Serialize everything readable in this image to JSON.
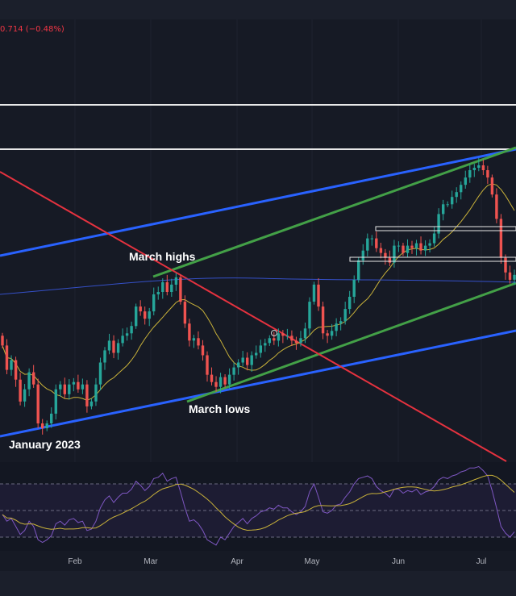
{
  "price_change": "0.714 (−0.48%)",
  "colors": {
    "background": "#161a25",
    "candle_up": "#26a69a",
    "candle_down": "#ef5350",
    "blue_channel": "#2962ff",
    "green_channel": "#43a047",
    "red_trendline": "#e5323f",
    "ma_50": "#c9b23a",
    "ma_200": "#3550c8",
    "rsi": "#7e57c2",
    "rsi_ma": "#c9b23a"
  },
  "chart_data": {
    "type": "candlestick",
    "x_ticks": [
      "Feb",
      "Mar",
      "Apr",
      "May",
      "Jun",
      "Jul"
    ],
    "annotations": [
      {
        "text": "March highs"
      },
      {
        "text": "March lows"
      },
      {
        "text": "January 2023"
      }
    ],
    "lines": [
      {
        "type": "horizontal-resistance",
        "color": "white"
      },
      {
        "type": "horizontal-resistance",
        "color": "white"
      },
      {
        "type": "rising-channel",
        "color": "blue"
      },
      {
        "type": "rising-channel",
        "color": "green"
      },
      {
        "type": "falling-trendline",
        "color": "red"
      },
      {
        "type": "horizontal-zone",
        "color": "white"
      },
      {
        "type": "horizontal-zone",
        "color": "white"
      }
    ],
    "indicators": [
      "moving-average-yellow",
      "moving-average-blue",
      "rsi",
      "rsi-moving-average"
    ],
    "candles_closes": [
      0.78,
      0.73,
      0.75,
      0.71,
      0.665,
      0.69,
      0.725,
      0.7,
      0.62,
      0.61,
      0.62,
      0.64,
      0.69,
      0.7,
      0.68,
      0.7,
      0.705,
      0.69,
      0.7,
      0.655,
      0.665,
      0.7,
      0.745,
      0.77,
      0.79,
      0.765,
      0.785,
      0.8,
      0.805,
      0.82,
      0.86,
      0.85,
      0.835,
      0.85,
      0.885,
      0.89,
      0.91,
      0.89,
      0.905,
      0.92,
      0.87,
      0.825,
      0.79,
      0.795,
      0.78,
      0.76,
      0.72,
      0.705,
      0.695,
      0.715,
      0.7,
      0.72,
      0.735,
      0.745,
      0.755,
      0.74,
      0.76,
      0.765,
      0.78,
      0.785,
      0.795,
      0.79,
      0.805,
      0.8,
      0.8,
      0.79,
      0.785,
      0.795,
      0.815,
      0.87,
      0.905,
      0.86,
      0.805,
      0.8,
      0.81,
      0.825,
      0.83,
      0.855,
      0.88,
      0.915,
      0.955,
      0.975,
      1.0,
      1.0,
      0.98,
      0.97,
      0.96,
      0.95,
      0.985,
      0.985,
      0.97,
      0.985,
      0.98,
      0.99,
      0.975,
      0.985,
      0.99,
      1.01,
      1.05,
      1.07,
      1.07,
      1.085,
      1.095,
      1.11,
      1.125,
      1.14,
      1.145,
      1.15,
      1.14,
      1.125,
      1.09,
      1.04,
      0.96,
      0.93,
      0.915,
      0.925
    ],
    "rsi_values": [
      47,
      42,
      44,
      38,
      32,
      35,
      42,
      38,
      28,
      26,
      28,
      31,
      40,
      42,
      39,
      43,
      44,
      41,
      42,
      35,
      36,
      42,
      52,
      58,
      61,
      56,
      60,
      63,
      63,
      66,
      72,
      69,
      65,
      68,
      74,
      75,
      78,
      72,
      74,
      75,
      64,
      52,
      42,
      43,
      40,
      35,
      28,
      26,
      24,
      30,
      28,
      33,
      38,
      41,
      44,
      40,
      44,
      46,
      49,
      50,
      52,
      51,
      54,
      52,
      52,
      49,
      47,
      49,
      53,
      64,
      70,
      60,
      49,
      48,
      50,
      54,
      55,
      60,
      64,
      70,
      74,
      75,
      76,
      74,
      68,
      65,
      63,
      60,
      66,
      66,
      63,
      65,
      64,
      66,
      62,
      64,
      65,
      68,
      73,
      75,
      74,
      76,
      77,
      79,
      80,
      82,
      82,
      83,
      80,
      76,
      65,
      52,
      38,
      33,
      30,
      34
    ]
  }
}
